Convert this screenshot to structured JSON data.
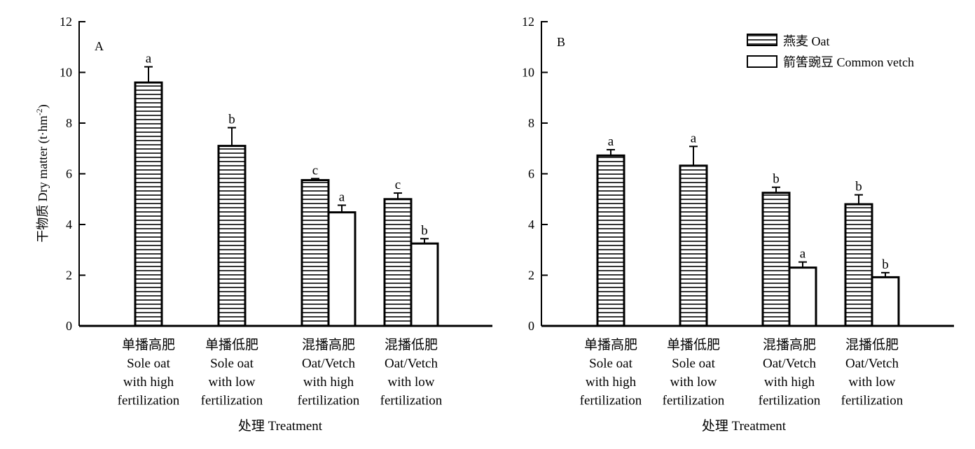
{
  "chart_data": [
    {
      "panel_label": "A",
      "type": "bar",
      "ylabel": "干物质 Dry matter (t·hm",
      "ylabel_sup": "-2",
      "ylabel_tail": ")",
      "xlabel": "处理 Treatment",
      "ylim": [
        0,
        12
      ],
      "yticks": [
        "0",
        "2",
        "4",
        "6",
        "8",
        "10",
        "12"
      ],
      "categories": [
        [
          "单播高肥",
          "Sole oat",
          "with high",
          "fertilization"
        ],
        [
          "单播低肥",
          "Sole oat",
          "with low",
          "fertilization"
        ],
        [
          "混播高肥",
          "Oat/Vetch",
          "with high",
          "fertilization"
        ],
        [
          "混播低肥",
          "Oat/Vetch",
          "with low",
          "fertilization"
        ]
      ],
      "series": [
        {
          "values": [
            9.6,
            7.1,
            5.75,
            5.0
          ],
          "errors": [
            0.62,
            0.72,
            0.06,
            0.24
          ],
          "letters": [
            "a",
            "b",
            "c",
            "c"
          ]
        },
        {
          "values": [
            null,
            null,
            4.48,
            3.25
          ],
          "errors": [
            null,
            null,
            0.28,
            0.19
          ],
          "letters": [
            null,
            null,
            "a",
            "b"
          ]
        }
      ]
    },
    {
      "panel_label": "B",
      "type": "bar",
      "xlabel": "处理 Treatment",
      "ylim": [
        0,
        12
      ],
      "yticks": [
        "0",
        "2",
        "4",
        "6",
        "8",
        "10",
        "12"
      ],
      "categories": [
        [
          "单播高肥",
          "Sole oat",
          "with high",
          "fertilization"
        ],
        [
          "单播低肥",
          "Sole oat",
          "with low",
          "fertilization"
        ],
        [
          "混播高肥",
          "Oat/Vetch",
          "with high",
          "fertilization"
        ],
        [
          "混播低肥",
          "Oat/Vetch",
          "with low",
          "fertilization"
        ]
      ],
      "series": [
        {
          "name": "燕麦 Oat",
          "values": [
            6.72,
            6.32,
            5.25,
            4.8
          ],
          "errors": [
            0.23,
            0.76,
            0.22,
            0.37
          ],
          "letters": [
            "a",
            "a",
            "b",
            "b"
          ]
        },
        {
          "name": "箭筈豌豆 Common vetch",
          "values": [
            null,
            null,
            2.3,
            1.92
          ],
          "errors": [
            null,
            null,
            0.22,
            0.18
          ],
          "letters": [
            null,
            null,
            "a",
            "b"
          ]
        }
      ],
      "legend": "top-right"
    }
  ],
  "colors": {
    "axis": "#000000",
    "bar_fill": "#ffffff",
    "hatch": "#000000"
  }
}
